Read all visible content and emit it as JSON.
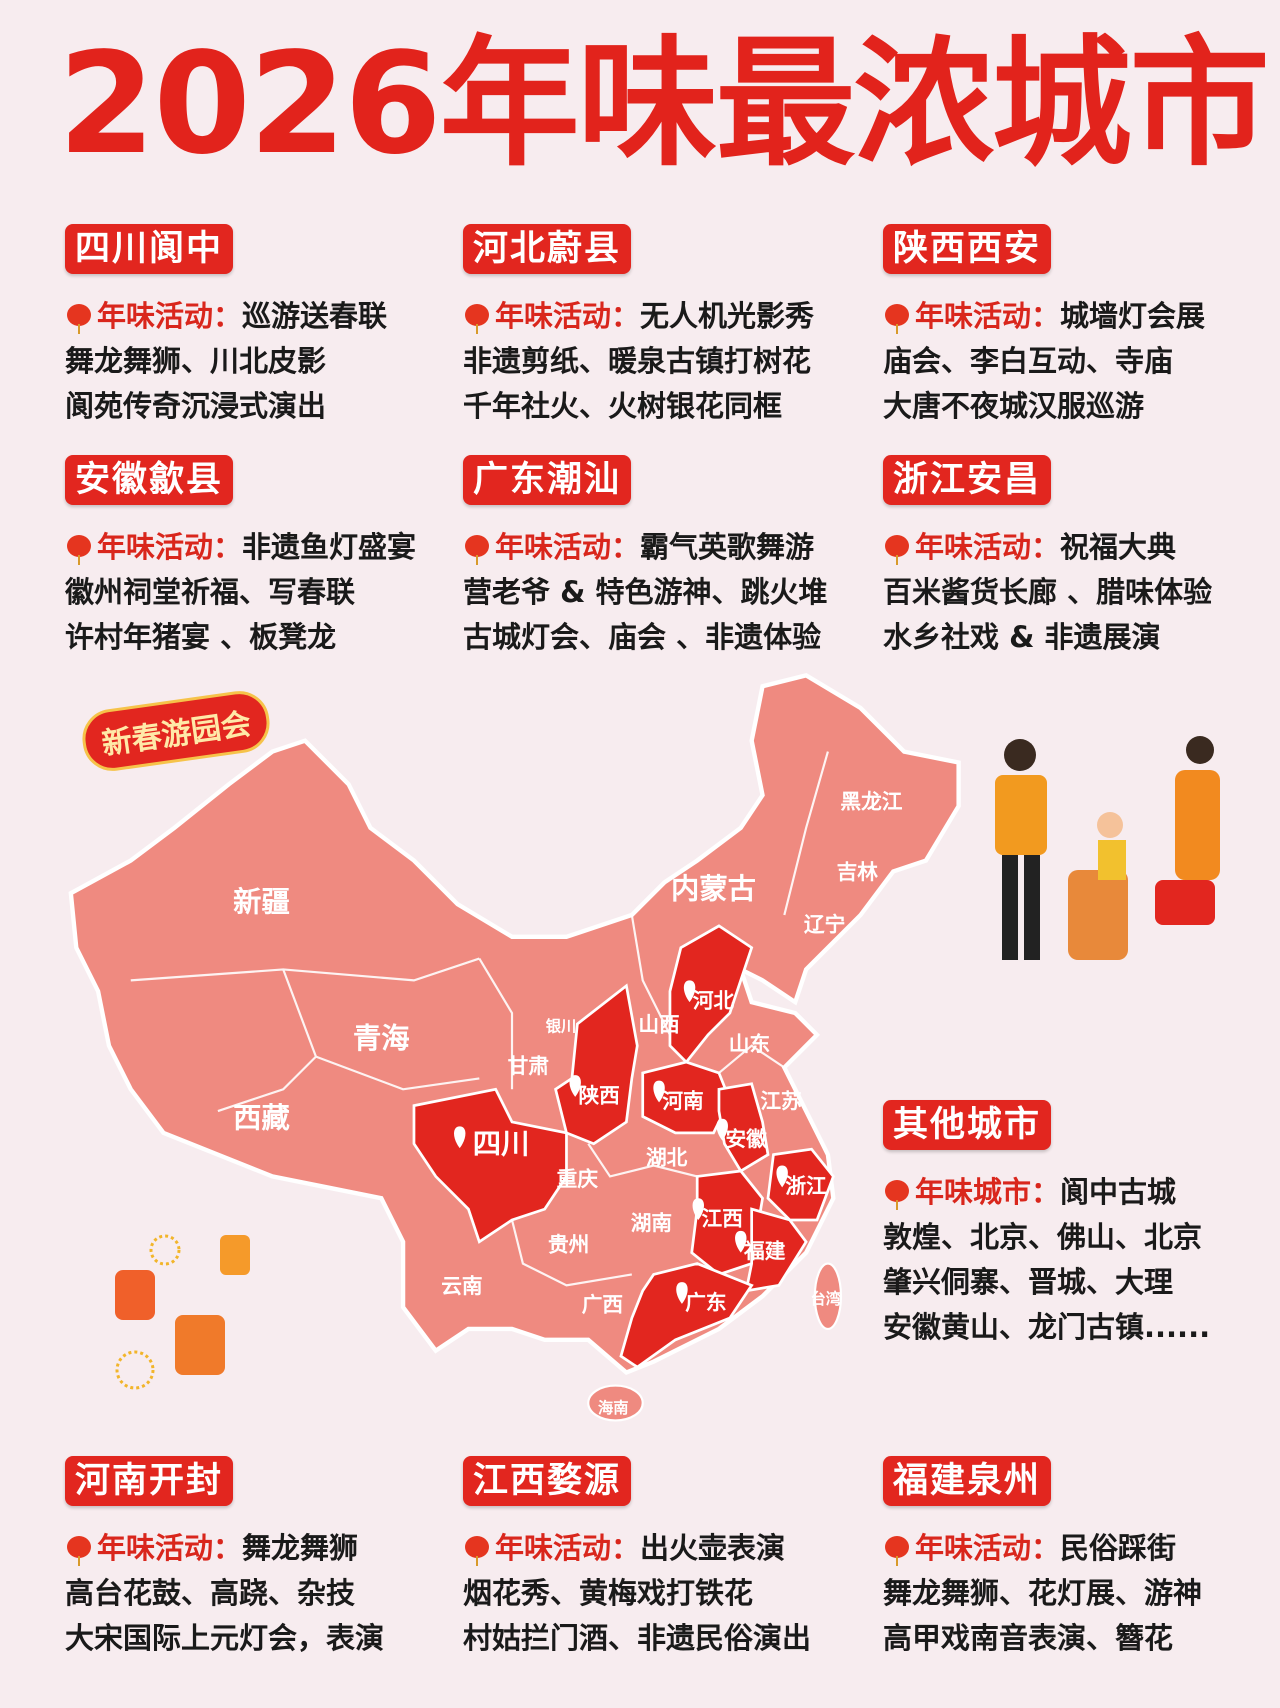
{
  "title": "2026年味最浓城市",
  "activity_label": "年味活动：",
  "city_label": "年味城市：",
  "cities": [
    {
      "name": "四川阆中",
      "lines": [
        "巡游送春联",
        "舞龙舞狮、川北皮影",
        "阆苑传奇沉浸式演出"
      ]
    },
    {
      "name": "河北蔚县",
      "lines": [
        "无人机光影秀",
        "非遗剪纸、暖泉古镇打树花",
        "千年社火、火树银花同框"
      ]
    },
    {
      "name": "陕西西安",
      "lines": [
        "城墙灯会展",
        "庙会、李白互动、寺庙",
        "大唐不夜城汉服巡游"
      ]
    },
    {
      "name": "安徽歙县",
      "lines": [
        "非遗鱼灯盛宴",
        "徽州祠堂祈福、写春联",
        "许村年猪宴 、板凳龙"
      ]
    },
    {
      "name": "广东潮汕",
      "lines": [
        "霸气英歌舞游",
        "营老爷 & 特色游神、跳火堆",
        "古城灯会、庙会 、非遗体验"
      ]
    },
    {
      "name": "浙江安昌",
      "lines": [
        "祝福大典",
        "百米酱货长廊 、腊味体验",
        "水乡社戏 & 非遗展演"
      ]
    },
    {
      "name": "河南开封",
      "lines": [
        "舞龙舞狮",
        "高台花鼓、高跷、杂技",
        "大宋国际上元灯会，表演"
      ]
    },
    {
      "name": "江西婺源",
      "lines": [
        "出火壶表演",
        "烟花秀、黄梅戏打铁花",
        "村姑拦门酒、非遗民俗演出"
      ]
    },
    {
      "name": "福建泉州",
      "lines": [
        "民俗踩街",
        "舞龙舞狮、花灯展、游神",
        "高甲戏南音表演、簪花"
      ]
    }
  ],
  "other": {
    "name": "其他城市",
    "lines": [
      "阆中古城",
      "敦煌、北京、佛山、北京",
      "肇兴侗寨、晋城、大理",
      "安徽黄山、龙门古镇......"
    ]
  },
  "badge": "新春游园会",
  "map": {
    "base_color": "#ef8a80",
    "highlight_color": "#e2261f",
    "provinces": [
      "新疆",
      "青海",
      "西藏",
      "内蒙古",
      "黑龙江",
      "吉林",
      "辽宁",
      "河北",
      "山西",
      "山东",
      "甘肃",
      "银川",
      "陕西",
      "河南",
      "江苏",
      "安徽",
      "四川",
      "湖北",
      "重庆",
      "浙江",
      "湖南",
      "江西",
      "福建",
      "贵州",
      "云南",
      "广西",
      "广东",
      "台湾",
      "海南"
    ],
    "highlighted": [
      "四川",
      "陕西",
      "河北",
      "河南",
      "安徽",
      "浙江",
      "江西",
      "福建",
      "广东"
    ]
  }
}
